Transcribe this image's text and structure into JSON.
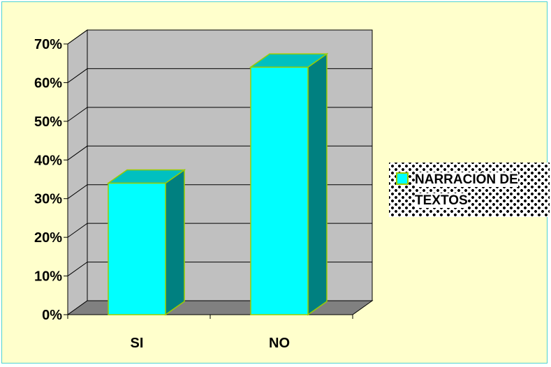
{
  "chart_data": {
    "type": "bar",
    "categories": [
      "SI",
      "NO"
    ],
    "series": [
      {
        "name": "NARRACIÓN DE TEXTOS",
        "values": [
          34,
          64
        ]
      }
    ],
    "y_ticks": [
      "0%",
      "10%",
      "20%",
      "30%",
      "40%",
      "50%",
      "60%",
      "70%"
    ],
    "ylim": [
      0,
      70
    ],
    "grid": true,
    "legend_position": "right",
    "colors": {
      "bar_front": "#00ffff",
      "bar_top": "#00c0c0",
      "bar_side": "#008080",
      "bar_outline": "#99cc00",
      "back_wall": "#c0c0c0",
      "floor": "#808080",
      "background": "#ffffcc",
      "frame_border": "#4fd2cf"
    }
  },
  "legend": {
    "line1": "NARRACIÓN DE",
    "line2": "TEXTOS"
  }
}
